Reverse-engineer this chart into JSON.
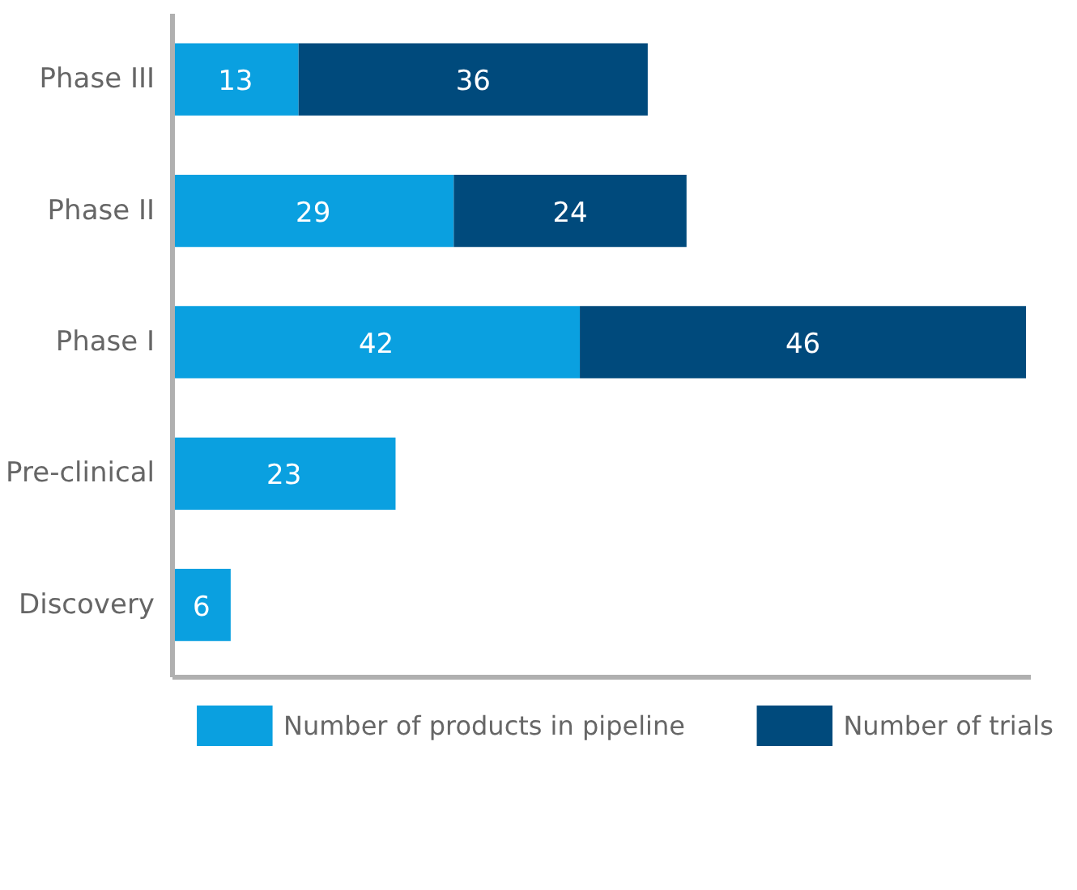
{
  "chart_data": {
    "type": "bar",
    "orientation": "horizontal",
    "stacked": true,
    "categories": [
      "Phase III",
      "Phase II",
      "Phase I",
      "Pre-clinical",
      "Discovery"
    ],
    "series": [
      {
        "name": "Number of products in pipeline",
        "color": "#0aa0e0",
        "values": [
          13,
          29,
          42,
          23,
          6
        ]
      },
      {
        "name": "Number of trials",
        "color": "#004a7c",
        "values": [
          36,
          24,
          46,
          null,
          null
        ]
      }
    ],
    "xlim": [
      0,
      88.5
    ],
    "data_labels": true,
    "tick_labels": "y",
    "legend": "bottom",
    "grid": false
  }
}
